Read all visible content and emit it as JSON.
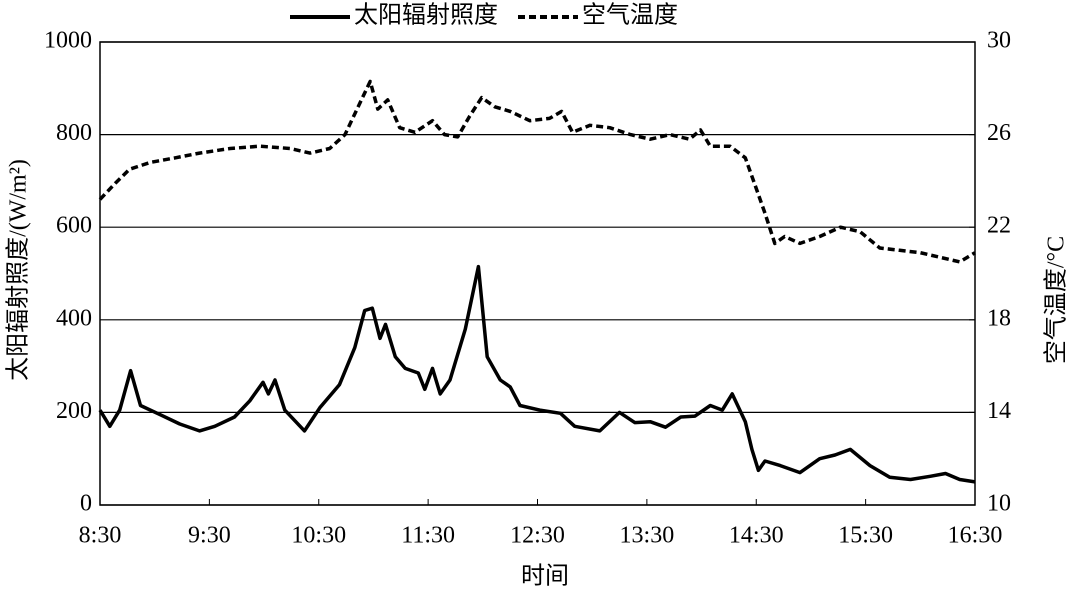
{
  "chart_data": {
    "type": "line",
    "x_label": "时间",
    "y_label": "太阳辐射照度/(W/m²)",
    "y2_label": "空气温度/°C",
    "xlim": [
      8.5,
      16.5
    ],
    "xticks": [
      {
        "value": 8.5,
        "label": "8:30"
      },
      {
        "value": 9.5,
        "label": "9:30"
      },
      {
        "value": 10.5,
        "label": "10:30"
      },
      {
        "value": 11.5,
        "label": "11:30"
      },
      {
        "value": 12.5,
        "label": "12:30"
      },
      {
        "value": 13.5,
        "label": "13:30"
      },
      {
        "value": 14.5,
        "label": "14:30"
      },
      {
        "value": 15.5,
        "label": "15:30"
      },
      {
        "value": 16.5,
        "label": "16:30"
      }
    ],
    "ylim": [
      0,
      1000
    ],
    "yticks": [
      0,
      200,
      400,
      600,
      800,
      1000
    ],
    "y2lim": [
      10,
      30
    ],
    "y2ticks": [
      10,
      14,
      18,
      22,
      26,
      30
    ],
    "grid": true,
    "legend": "top",
    "series": [
      {
        "name": "太阳辐射照度",
        "color": "#000000",
        "style": "solid",
        "x": [
          8.5,
          8.59,
          8.68,
          8.78,
          8.87,
          9.05,
          9.23,
          9.41,
          9.55,
          9.73,
          9.87,
          9.99,
          10.04,
          10.1,
          10.19,
          10.37,
          10.51,
          10.69,
          10.83,
          10.92,
          10.99,
          11.06,
          11.11,
          11.2,
          11.29,
          11.41,
          11.47,
          11.54,
          11.61,
          11.7,
          11.84,
          11.96,
          12.04,
          12.16,
          12.25,
          12.34,
          12.52,
          12.71,
          12.84,
          13.07,
          13.25,
          13.39,
          13.53,
          13.67,
          13.81,
          13.94,
          14.08,
          14.19,
          14.28,
          14.4,
          14.46,
          14.52,
          14.58,
          14.72,
          14.9,
          15.08,
          15.22,
          15.36,
          15.54,
          15.72,
          15.91,
          16.09,
          16.23,
          16.36,
          16.5
        ],
        "values": [
          205,
          170,
          205,
          290,
          215,
          195,
          175,
          160,
          170,
          190,
          225,
          265,
          240,
          270,
          205,
          160,
          210,
          260,
          340,
          420,
          425,
          360,
          390,
          320,
          295,
          285,
          250,
          295,
          240,
          270,
          380,
          515,
          320,
          270,
          255,
          215,
          205,
          198,
          170,
          160,
          200,
          178,
          180,
          168,
          190,
          192,
          215,
          205,
          240,
          180,
          120,
          75,
          95,
          85,
          70,
          100,
          108,
          120,
          85,
          60,
          55,
          62,
          68,
          55,
          50
        ]
      },
      {
        "name": "空气温度",
        "color": "#000000",
        "style": "dashed",
        "axis": "y2",
        "x": [
          8.5,
          8.64,
          8.77,
          8.96,
          9.19,
          9.41,
          9.69,
          9.96,
          10.24,
          10.42,
          10.6,
          10.74,
          10.9,
          10.97,
          11.04,
          11.13,
          11.24,
          11.38,
          11.54,
          11.65,
          11.77,
          11.88,
          11.99,
          12.11,
          12.25,
          12.43,
          12.61,
          12.72,
          12.82,
          12.98,
          13.16,
          13.35,
          13.53,
          13.71,
          13.89,
          13.99,
          14.08,
          14.26,
          14.4,
          14.49,
          14.58,
          14.67,
          14.76,
          14.9,
          15.08,
          15.27,
          15.45,
          15.63,
          15.81,
          16.0,
          16.18,
          16.36,
          16.5
        ],
        "values": [
          23.2,
          23.9,
          24.5,
          24.8,
          25.0,
          25.2,
          25.4,
          25.5,
          25.4,
          25.2,
          25.4,
          26.0,
          27.6,
          28.3,
          27.1,
          27.5,
          26.3,
          26.1,
          26.6,
          26.0,
          25.9,
          26.8,
          27.6,
          27.2,
          27.0,
          26.6,
          26.7,
          27.0,
          26.1,
          26.4,
          26.3,
          26.0,
          25.8,
          26.0,
          25.8,
          26.2,
          25.5,
          25.5,
          25.0,
          23.8,
          22.6,
          21.3,
          21.6,
          21.3,
          21.6,
          22.0,
          21.8,
          21.1,
          21.0,
          20.9,
          20.7,
          20.5,
          20.9
        ]
      }
    ]
  }
}
